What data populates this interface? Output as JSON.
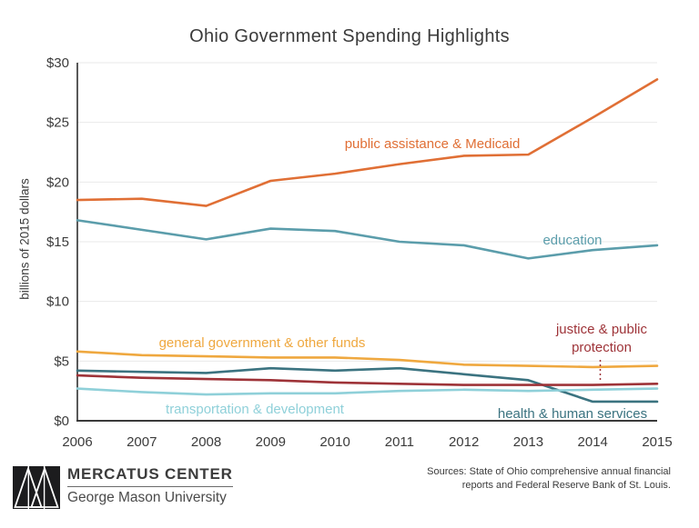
{
  "title": "Ohio Government Spending Highlights",
  "chart_data": {
    "type": "line",
    "title": "Ohio Government Spending Highlights",
    "ylabel": "billions of 2015 dollars",
    "xlabel": "",
    "x": [
      2006,
      2007,
      2008,
      2009,
      2010,
      2011,
      2012,
      2013,
      2014,
      2015
    ],
    "x_tick_labels": [
      "2006",
      "2007",
      "2008",
      "2009",
      "2010",
      "2011",
      "2012",
      "2013",
      "2014",
      "2015"
    ],
    "y_ticks": [
      0,
      5,
      10,
      15,
      20,
      25,
      30
    ],
    "y_tick_labels": [
      "$0",
      "$5",
      "$10",
      "$15",
      "$20",
      "$25",
      "$30"
    ],
    "ylim": [
      0,
      30
    ],
    "grid": "horizontal",
    "gridline_color": "#e9e9e9",
    "axis_color": "#3a3a3a",
    "legend_position": "inline-labels",
    "series": [
      {
        "name": "public assistance & Medicaid",
        "color": "#e06f35",
        "values": [
          18.5,
          18.6,
          18.0,
          20.1,
          20.7,
          21.5,
          22.2,
          22.3,
          25.4,
          28.6
        ]
      },
      {
        "name": "education",
        "color": "#5b9dab",
        "values": [
          16.8,
          16.0,
          15.2,
          16.1,
          15.9,
          15.0,
          14.7,
          13.6,
          14.3,
          14.7
        ]
      },
      {
        "name": "general government & other funds",
        "color": "#efa83f",
        "values": [
          5.8,
          5.5,
          5.4,
          5.3,
          5.3,
          5.1,
          4.7,
          4.6,
          4.5,
          4.6
        ]
      },
      {
        "name": "health & human services",
        "color": "#3b7380",
        "values": [
          4.2,
          4.1,
          4.0,
          4.4,
          4.2,
          4.4,
          3.9,
          3.4,
          1.6,
          1.6
        ]
      },
      {
        "name": "justice & public protection",
        "color": "#9e3338",
        "values": [
          3.8,
          3.6,
          3.5,
          3.4,
          3.2,
          3.1,
          3.0,
          3.0,
          3.0,
          3.1
        ]
      },
      {
        "name": "transportation & development",
        "color": "#8fd0d9",
        "values": [
          2.7,
          2.4,
          2.2,
          2.3,
          2.3,
          2.5,
          2.6,
          2.5,
          2.6,
          2.7
        ]
      }
    ],
    "annotations": [
      {
        "type": "dotted-callout-line",
        "series": "justice & public protection",
        "near_x": 2014
      }
    ]
  },
  "footer": {
    "logo_title": "MERCATUS CENTER",
    "logo_subtitle": "George Mason University",
    "sources_line1": "Sources: State of Ohio comprehensive annual financial",
    "sources_line2": "reports and Federal Reserve Bank of St. Louis."
  }
}
